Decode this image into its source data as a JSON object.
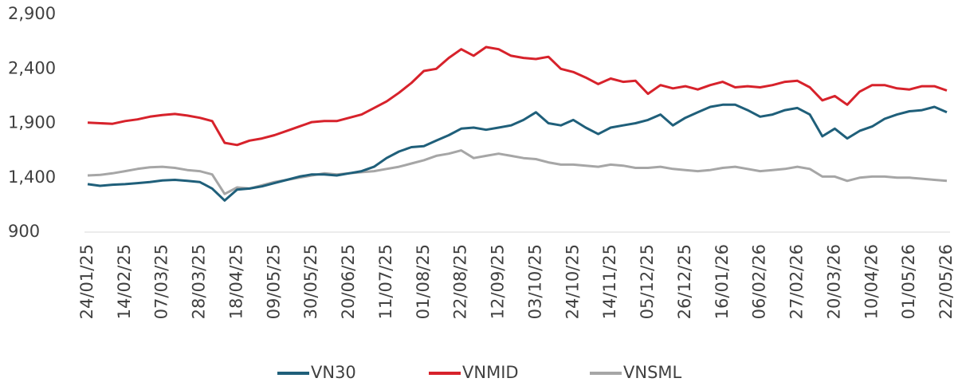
{
  "chart_data": {
    "type": "line",
    "categories": [
      "24/01/25",
      null,
      null,
      "14/02/25",
      null,
      null,
      "07/03/25",
      null,
      null,
      "28/03/25",
      null,
      null,
      "18/04/25",
      null,
      null,
      "09/05/25",
      null,
      null,
      "30/05/25",
      null,
      null,
      "20/06/25",
      null,
      null,
      "11/07/25",
      null,
      null,
      "01/08/25",
      null,
      null,
      "22/08/25",
      null,
      null,
      "12/09/25",
      null,
      null,
      "03/10/25",
      null,
      null,
      "24/10/25",
      null,
      null,
      "14/11/25",
      null,
      null,
      "05/12/25",
      null,
      null,
      "26/12/25",
      null,
      null,
      "16/01/26",
      null,
      null,
      "06/02/26",
      null,
      null,
      "27/02/26",
      null,
      null,
      "20/03/26",
      null,
      null,
      "10/04/26",
      null,
      null,
      "01/05/26",
      null,
      null,
      "22/05/26"
    ],
    "series": [
      {
        "name": "VN30",
        "color": "#1f5f7a",
        "values": [
          1340,
          1325,
          1335,
          1340,
          1350,
          1360,
          1375,
          1380,
          1370,
          1360,
          1300,
          1190,
          1290,
          1300,
          1320,
          1350,
          1380,
          1410,
          1430,
          1430,
          1420,
          1440,
          1460,
          1500,
          1580,
          1640,
          1680,
          1690,
          1740,
          1790,
          1850,
          1860,
          1840,
          1860,
          1880,
          1930,
          2000,
          1900,
          1880,
          1930,
          1860,
          1800,
          1860,
          1880,
          1900,
          1930,
          1980,
          1880,
          1950,
          2000,
          2050,
          2070,
          2070,
          2020,
          1960,
          1980,
          2020,
          2040,
          1980,
          1780,
          1850,
          1760,
          1830,
          1870,
          1940,
          1980,
          2010,
          2020,
          2050,
          2000
        ]
      },
      {
        "name": "VNMID",
        "color": "#d7222b",
        "values": [
          1905,
          1900,
          1895,
          1920,
          1935,
          1960,
          1975,
          1985,
          1970,
          1950,
          1920,
          1720,
          1700,
          1740,
          1760,
          1790,
          1830,
          1870,
          1910,
          1920,
          1920,
          1950,
          1980,
          2040,
          2100,
          2180,
          2270,
          2380,
          2400,
          2500,
          2580,
          2520,
          2600,
          2580,
          2520,
          2500,
          2490,
          2510,
          2400,
          2370,
          2320,
          2260,
          2310,
          2280,
          2290,
          2170,
          2250,
          2220,
          2240,
          2210,
          2250,
          2280,
          2230,
          2240,
          2230,
          2250,
          2280,
          2290,
          2230,
          2110,
          2150,
          2070,
          2190,
          2250,
          2250,
          2220,
          2210,
          2240,
          2240,
          2200
        ]
      },
      {
        "name": "VNSML",
        "color": "#a6a6a6",
        "values": [
          1420,
          1425,
          1440,
          1460,
          1480,
          1495,
          1500,
          1490,
          1470,
          1460,
          1430,
          1250,
          1310,
          1300,
          1330,
          1360,
          1380,
          1400,
          1420,
          1440,
          1430,
          1440,
          1450,
          1460,
          1480,
          1500,
          1530,
          1560,
          1600,
          1620,
          1650,
          1580,
          1600,
          1620,
          1600,
          1580,
          1570,
          1540,
          1520,
          1520,
          1510,
          1500,
          1520,
          1510,
          1490,
          1490,
          1500,
          1480,
          1470,
          1460,
          1470,
          1490,
          1500,
          1480,
          1460,
          1470,
          1480,
          1500,
          1480,
          1410,
          1410,
          1370,
          1400,
          1410,
          1410,
          1400,
          1400,
          1390,
          1380,
          1370
        ]
      }
    ],
    "ylim": [
      900,
      2900
    ],
    "yticks": [
      900,
      {
        "value": 1400,
        "label": "1,400"
      },
      {
        "value": 1900,
        "label": "1,900"
      },
      {
        "value": 2400,
        "label": "2,400"
      },
      {
        "value": 2900,
        "label": "2,900"
      }
    ],
    "grid": false,
    "legend": "bottom"
  }
}
